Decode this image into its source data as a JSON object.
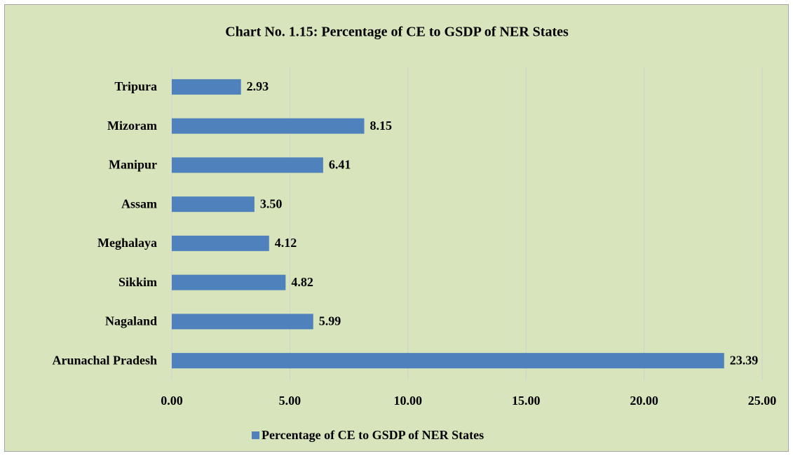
{
  "chart_data": {
    "type": "bar",
    "orientation": "horizontal",
    "title": "Chart No. 1.15: Percentage of CE to GSDP of NER States",
    "categories": [
      "Tripura",
      "Mizoram",
      "Manipur",
      "Assam",
      "Meghalaya",
      "Sikkim",
      "Nagaland",
      "Arunachal Pradesh"
    ],
    "series": [
      {
        "name": "Percentage of CE to GSDP of NER States",
        "color": "#4f81bd",
        "values": [
          2.93,
          8.15,
          6.41,
          3.5,
          4.12,
          4.82,
          5.99,
          23.39
        ],
        "value_labels": [
          "2.93",
          "8.15",
          "6.41",
          "3.50",
          "4.12",
          "4.82",
          "5.99",
          "23.39"
        ]
      }
    ],
    "xlim": [
      0,
      25
    ],
    "xticks": [
      {
        "value": 0,
        "label": "0.00"
      },
      {
        "value": 5,
        "label": "5.00"
      },
      {
        "value": 10,
        "label": "10.00"
      },
      {
        "value": 15,
        "label": "15.00"
      },
      {
        "value": 20,
        "label": "20.00"
      },
      {
        "value": 25,
        "label": "25.00"
      }
    ],
    "grid": true,
    "legend": "bottom"
  }
}
